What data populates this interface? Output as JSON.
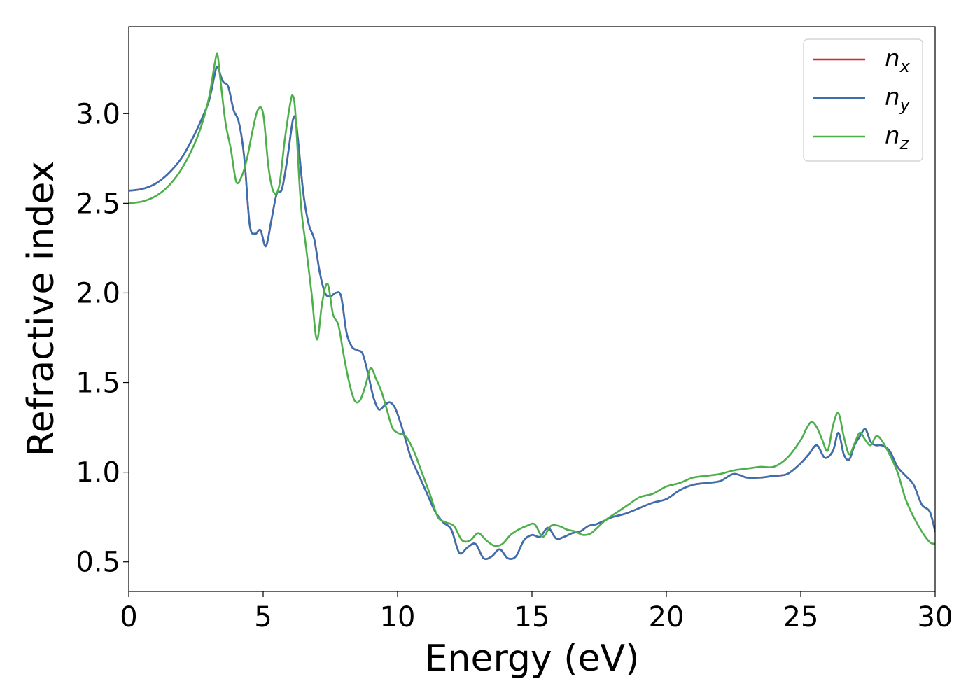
{
  "chart_data": {
    "type": "line",
    "xlabel": "Energy (eV)",
    "ylabel": "Refractive index",
    "xlim": [
      0,
      30
    ],
    "ylim": [
      0.335,
      3.485
    ],
    "xticks": [
      0,
      5,
      10,
      15,
      20,
      25,
      30
    ],
    "xtick_labels": [
      "0",
      "5",
      "10",
      "15",
      "20",
      "25",
      "30"
    ],
    "yticks": [
      0.5,
      1.0,
      1.5,
      2.0,
      2.5,
      3.0
    ],
    "ytick_labels": [
      "0.5",
      "1.0",
      "1.5",
      "2.0",
      "2.5",
      "3.0"
    ],
    "grid": false,
    "legend_position": "top-right",
    "series": [
      {
        "name": "n",
        "subscript": "x",
        "color": "#d62728",
        "x": [
          0,
          0.5,
          1.0,
          1.5,
          2.0,
          2.5,
          2.8,
          3.0,
          3.2,
          3.3,
          3.5,
          3.7,
          3.9,
          4.1,
          4.3,
          4.5,
          4.7,
          4.9,
          5.1,
          5.3,
          5.5,
          5.7,
          5.9,
          6.1,
          6.2,
          6.3,
          6.5,
          6.7,
          6.9,
          7.1,
          7.3,
          7.5,
          7.7,
          7.9,
          8.1,
          8.3,
          8.5,
          8.7,
          8.9,
          9.1,
          9.3,
          9.5,
          9.7,
          9.9,
          10.1,
          10.3,
          10.5,
          10.8,
          11.1,
          11.4,
          11.7,
          12.0,
          12.3,
          12.6,
          12.9,
          13.2,
          13.5,
          13.8,
          14.1,
          14.4,
          14.7,
          15.0,
          15.3,
          15.6,
          15.9,
          16.2,
          16.5,
          16.8,
          17.1,
          17.4,
          17.7,
          18.0,
          18.5,
          19.0,
          19.5,
          20.0,
          20.5,
          21.0,
          21.5,
          22.0,
          22.5,
          23.0,
          23.5,
          24.0,
          24.5,
          25.0,
          25.3,
          25.6,
          25.9,
          26.2,
          26.4,
          26.6,
          26.8,
          27.0,
          27.2,
          27.4,
          27.6,
          27.8,
          28.0,
          28.3,
          28.6,
          28.9,
          29.2,
          29.5,
          29.8,
          30.0
        ],
        "y": [
          2.57,
          2.58,
          2.61,
          2.67,
          2.76,
          2.9,
          3.0,
          3.08,
          3.22,
          3.26,
          3.18,
          3.15,
          3.02,
          2.95,
          2.75,
          2.38,
          2.33,
          2.35,
          2.26,
          2.4,
          2.55,
          2.58,
          2.75,
          2.96,
          2.97,
          2.85,
          2.55,
          2.38,
          2.3,
          2.12,
          2.0,
          1.98,
          2.0,
          1.98,
          1.78,
          1.7,
          1.68,
          1.66,
          1.55,
          1.42,
          1.35,
          1.37,
          1.39,
          1.36,
          1.28,
          1.18,
          1.08,
          0.98,
          0.88,
          0.78,
          0.72,
          0.68,
          0.55,
          0.58,
          0.6,
          0.52,
          0.53,
          0.57,
          0.52,
          0.53,
          0.62,
          0.65,
          0.64,
          0.69,
          0.63,
          0.64,
          0.66,
          0.67,
          0.7,
          0.71,
          0.73,
          0.75,
          0.77,
          0.8,
          0.83,
          0.85,
          0.9,
          0.93,
          0.94,
          0.95,
          0.99,
          0.97,
          0.97,
          0.98,
          0.99,
          1.05,
          1.1,
          1.15,
          1.08,
          1.12,
          1.22,
          1.1,
          1.07,
          1.15,
          1.2,
          1.24,
          1.17,
          1.15,
          1.15,
          1.12,
          1.03,
          0.98,
          0.93,
          0.82,
          0.78,
          0.67
        ]
      },
      {
        "name": "n",
        "subscript": "y",
        "color": "#3a6fb0",
        "x": [
          0,
          0.5,
          1.0,
          1.5,
          2.0,
          2.5,
          2.8,
          3.0,
          3.2,
          3.3,
          3.5,
          3.7,
          3.9,
          4.1,
          4.3,
          4.5,
          4.7,
          4.9,
          5.1,
          5.3,
          5.5,
          5.7,
          5.9,
          6.1,
          6.2,
          6.3,
          6.5,
          6.7,
          6.9,
          7.1,
          7.3,
          7.5,
          7.7,
          7.9,
          8.1,
          8.3,
          8.5,
          8.7,
          8.9,
          9.1,
          9.3,
          9.5,
          9.7,
          9.9,
          10.1,
          10.3,
          10.5,
          10.8,
          11.1,
          11.4,
          11.7,
          12.0,
          12.3,
          12.6,
          12.9,
          13.2,
          13.5,
          13.8,
          14.1,
          14.4,
          14.7,
          15.0,
          15.3,
          15.6,
          15.9,
          16.2,
          16.5,
          16.8,
          17.1,
          17.4,
          17.7,
          18.0,
          18.5,
          19.0,
          19.5,
          20.0,
          20.5,
          21.0,
          21.5,
          22.0,
          22.5,
          23.0,
          23.5,
          24.0,
          24.5,
          25.0,
          25.3,
          25.6,
          25.9,
          26.2,
          26.4,
          26.6,
          26.8,
          27.0,
          27.2,
          27.4,
          27.6,
          27.8,
          28.0,
          28.3,
          28.6,
          28.9,
          29.2,
          29.5,
          29.8,
          30.0
        ],
        "y": [
          2.57,
          2.58,
          2.61,
          2.67,
          2.76,
          2.9,
          3.0,
          3.08,
          3.22,
          3.26,
          3.18,
          3.15,
          3.02,
          2.95,
          2.75,
          2.38,
          2.33,
          2.35,
          2.26,
          2.4,
          2.55,
          2.58,
          2.75,
          2.96,
          2.97,
          2.85,
          2.55,
          2.38,
          2.3,
          2.12,
          2.0,
          1.98,
          2.0,
          1.98,
          1.78,
          1.7,
          1.68,
          1.66,
          1.55,
          1.42,
          1.35,
          1.37,
          1.39,
          1.36,
          1.28,
          1.18,
          1.08,
          0.98,
          0.88,
          0.78,
          0.72,
          0.68,
          0.55,
          0.58,
          0.6,
          0.52,
          0.53,
          0.57,
          0.52,
          0.53,
          0.62,
          0.65,
          0.64,
          0.69,
          0.63,
          0.64,
          0.66,
          0.67,
          0.7,
          0.71,
          0.73,
          0.75,
          0.77,
          0.8,
          0.83,
          0.85,
          0.9,
          0.93,
          0.94,
          0.95,
          0.99,
          0.97,
          0.97,
          0.98,
          0.99,
          1.05,
          1.1,
          1.15,
          1.08,
          1.12,
          1.22,
          1.1,
          1.07,
          1.15,
          1.2,
          1.24,
          1.17,
          1.15,
          1.15,
          1.12,
          1.03,
          0.98,
          0.93,
          0.82,
          0.78,
          0.67
        ]
      },
      {
        "name": "n",
        "subscript": "z",
        "color": "#4daf4a",
        "x": [
          0,
          0.5,
          1.0,
          1.5,
          2.0,
          2.5,
          2.8,
          3.0,
          3.2,
          3.3,
          3.4,
          3.6,
          3.8,
          4.0,
          4.2,
          4.4,
          4.6,
          4.8,
          5.0,
          5.2,
          5.4,
          5.6,
          5.8,
          6.0,
          6.1,
          6.2,
          6.4,
          6.6,
          6.8,
          7.0,
          7.2,
          7.4,
          7.6,
          7.8,
          8.0,
          8.2,
          8.4,
          8.6,
          8.8,
          9.0,
          9.2,
          9.4,
          9.6,
          9.8,
          10.0,
          10.3,
          10.6,
          10.9,
          11.2,
          11.5,
          11.8,
          12.1,
          12.4,
          12.7,
          13.0,
          13.3,
          13.6,
          13.9,
          14.2,
          14.5,
          14.8,
          15.1,
          15.4,
          15.7,
          16.0,
          16.3,
          16.6,
          16.9,
          17.2,
          17.5,
          17.8,
          18.2,
          18.6,
          19.0,
          19.5,
          20.0,
          20.5,
          21.0,
          21.5,
          22.0,
          22.5,
          23.0,
          23.5,
          24.0,
          24.5,
          25.0,
          25.2,
          25.4,
          25.6,
          25.8,
          26.0,
          26.2,
          26.4,
          26.6,
          26.8,
          27.0,
          27.2,
          27.4,
          27.6,
          27.8,
          28.0,
          28.3,
          28.6,
          28.9,
          29.2,
          29.5,
          29.8,
          30.0
        ],
        "y": [
          2.5,
          2.51,
          2.54,
          2.6,
          2.7,
          2.85,
          2.98,
          3.1,
          3.28,
          3.33,
          3.2,
          2.95,
          2.8,
          2.62,
          2.65,
          2.75,
          2.9,
          3.02,
          3.0,
          2.7,
          2.56,
          2.6,
          2.85,
          3.05,
          3.1,
          3.0,
          2.5,
          2.25,
          2.0,
          1.74,
          1.95,
          2.05,
          1.88,
          1.82,
          1.65,
          1.5,
          1.4,
          1.4,
          1.48,
          1.58,
          1.52,
          1.45,
          1.35,
          1.25,
          1.22,
          1.2,
          1.12,
          1.0,
          0.88,
          0.75,
          0.72,
          0.7,
          0.62,
          0.62,
          0.66,
          0.62,
          0.59,
          0.6,
          0.65,
          0.68,
          0.7,
          0.71,
          0.64,
          0.7,
          0.7,
          0.68,
          0.67,
          0.65,
          0.66,
          0.7,
          0.74,
          0.78,
          0.82,
          0.86,
          0.88,
          0.92,
          0.94,
          0.97,
          0.98,
          0.99,
          1.01,
          1.02,
          1.03,
          1.03,
          1.08,
          1.18,
          1.24,
          1.28,
          1.25,
          1.18,
          1.12,
          1.26,
          1.33,
          1.2,
          1.1,
          1.16,
          1.22,
          1.18,
          1.15,
          1.2,
          1.18,
          1.1,
          1.0,
          0.85,
          0.75,
          0.67,
          0.61,
          0.6
        ]
      }
    ]
  }
}
